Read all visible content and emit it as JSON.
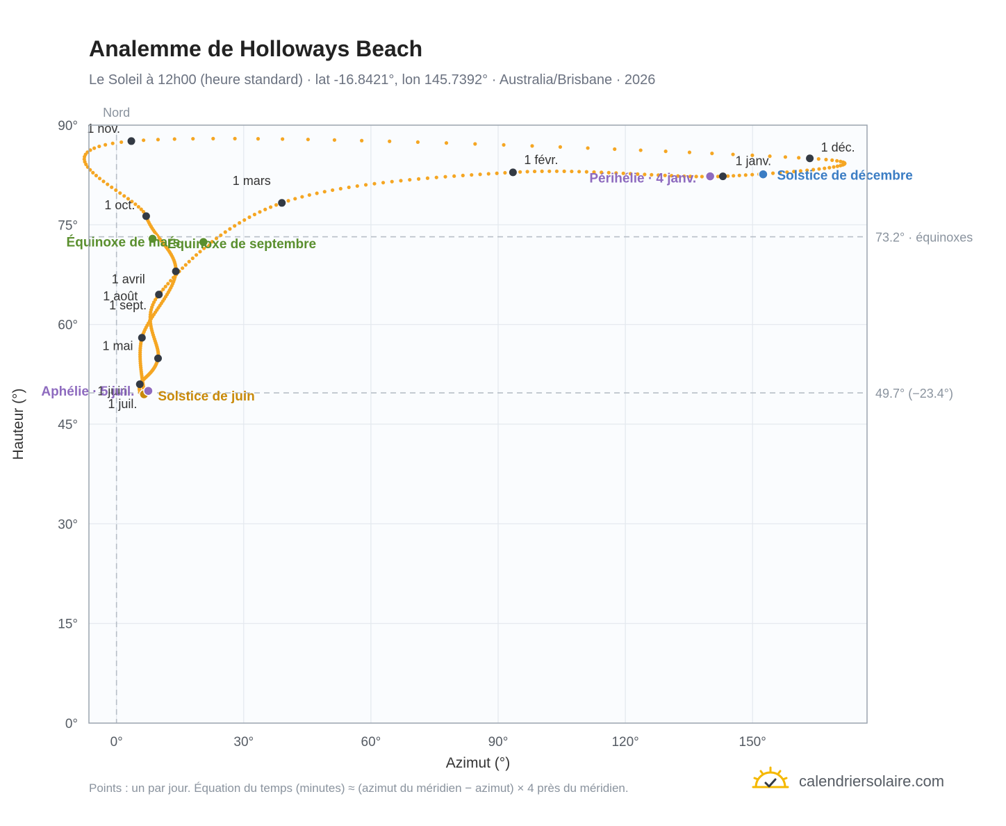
{
  "header": {
    "title": "Analemme de Holloways Beach",
    "subtitle": "Le Soleil à 12h00 (heure standard) · lat -16.8421°, lon 145.7392° · Australia/Brisbane · 2026"
  },
  "footer": {
    "note": "Points : un par jour. Équation du temps (minutes) ≈ (azimut du méridien − azimut) × 4 près du méridien.",
    "brand": "calendriersolaire.com",
    "brand_icon": "sun-check-icon"
  },
  "colors": {
    "curve": "#f5a623",
    "month_dot": "#333a44",
    "equinox": "#5a8f2e",
    "june_solstice": "#c98a0a",
    "december_solstice": "#3b7dc4",
    "apsis": "#8e6bbf",
    "plot_bg": "#fafcfe",
    "grid": "#e3e8ee",
    "frame": "#9aa3ae",
    "ref_line": "#b7bec7"
  },
  "chart_data": {
    "type": "scatter",
    "xlabel": "Azimut (°)",
    "ylabel": "Hauteur (°)",
    "xlim": [
      -6.5,
      177
    ],
    "ylim": [
      0,
      90
    ],
    "xticks": [
      0,
      30,
      60,
      90,
      120,
      150
    ],
    "xtick_labels": [
      "0°",
      "30°",
      "60°",
      "90°",
      "120°",
      "150°"
    ],
    "yticks": [
      0,
      15,
      30,
      45,
      60,
      75,
      90
    ],
    "ytick_labels": [
      "0°",
      "15°",
      "30°",
      "45°",
      "60°",
      "75°",
      "90°"
    ],
    "grid": true,
    "north_line": {
      "azimuth": 0,
      "label": "Nord"
    },
    "reference_lines": [
      {
        "altitude": 73.2,
        "label": "73.2° · équinoxes"
      },
      {
        "altitude": 49.7,
        "label": "49.7° (−23.4°)"
      }
    ],
    "month_markers": [
      {
        "label": "1 janv.",
        "azimuth": 143.0,
        "altitude": 82.3
      },
      {
        "label": "1 févr.",
        "azimuth": 93.5,
        "altitude": 82.9
      },
      {
        "label": "1 mars",
        "azimuth": 39.0,
        "altitude": 78.3
      },
      {
        "label": "1 avril",
        "azimuth": 10.0,
        "altitude": 64.5
      },
      {
        "label": "1 mai",
        "azimuth": 9.8,
        "altitude": 54.9
      },
      {
        "label": "1 juin",
        "azimuth": 5.5,
        "altitude": 51.0
      },
      {
        "label": "1 juil.",
        "azimuth": 6.5,
        "altitude": 49.5
      },
      {
        "label": "1 août",
        "azimuth": 6.0,
        "altitude": 58.0
      },
      {
        "label": "1 sept.",
        "azimuth": 14.0,
        "altitude": 68.0
      },
      {
        "label": "1 oct.",
        "azimuth": 7.0,
        "altitude": 76.3
      },
      {
        "label": "1 nov.",
        "azimuth": 3.5,
        "altitude": 87.6
      },
      {
        "label": "1 déc.",
        "azimuth": 163.5,
        "altitude": 85.0
      }
    ],
    "events": [
      {
        "label": "Équinoxe de mars",
        "azimuth": 8.5,
        "altitude": 72.9,
        "color_key": "equinox"
      },
      {
        "label": "Équinoxe de septembre",
        "azimuth": 20.5,
        "altitude": 72.4,
        "color_key": "equinox"
      },
      {
        "label": "Solstice de juin",
        "azimuth": 6.5,
        "altitude": 49.5,
        "color_key": "june_solstice"
      },
      {
        "label": "Solstice de décembre",
        "azimuth": 152.5,
        "altitude": 82.6,
        "color_key": "december_solstice"
      },
      {
        "label": "Aphélie · 5 juil.",
        "azimuth": 7.5,
        "altitude": 50.0,
        "color_key": "apsis"
      },
      {
        "label": "Périhélie · 4 janv.",
        "azimuth": 140.0,
        "altitude": 82.3,
        "color_key": "apsis"
      }
    ]
  }
}
